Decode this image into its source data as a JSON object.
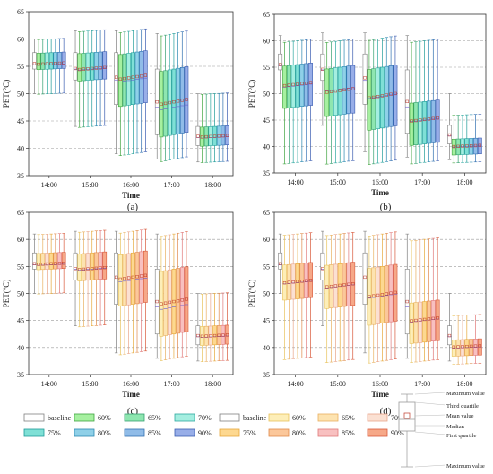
{
  "figure": {
    "legend_a": [
      {
        "label": "baseline",
        "color": "#ffffff",
        "edge": "#7f7f7f"
      },
      {
        "label": "60%",
        "color": "#a6f0a0",
        "edge": "#3fa43f"
      },
      {
        "label": "65%",
        "color": "#8ee6b0",
        "edge": "#34a070"
      },
      {
        "label": "70%",
        "color": "#a4eee0",
        "edge": "#2ea8a0"
      },
      {
        "label": "75%",
        "color": "#7fe0d6",
        "edge": "#1f9c98"
      },
      {
        "label": "80%",
        "color": "#8fd0e8",
        "edge": "#2a88b0"
      },
      {
        "label": "85%",
        "color": "#90bce8",
        "edge": "#2f6fb0"
      },
      {
        "label": "90%",
        "color": "#98aee8",
        "edge": "#3a5cb0"
      }
    ],
    "legend_b": [
      {
        "label": "baseline",
        "color": "#ffffff",
        "edge": "#7f7f7f"
      },
      {
        "label": "60%",
        "color": "#fdeeb8",
        "edge": "#e8c25a"
      },
      {
        "label": "65%",
        "color": "#fde3b0",
        "edge": "#e9b060"
      },
      {
        "label": "70%",
        "color": "#fbe0d2",
        "edge": "#e8a58a"
      },
      {
        "label": "75%",
        "color": "#fdd890",
        "edge": "#e6a83a"
      },
      {
        "label": "80%",
        "color": "#fbc79a",
        "edge": "#e08a4a"
      },
      {
        "label": "85%",
        "color": "#f8c0c0",
        "edge": "#e07878"
      },
      {
        "label": "90%",
        "color": "#f6a888",
        "edge": "#d8583a"
      }
    ],
    "box_legend": {
      "max_top": "Maximum value",
      "q3": "Third quartile",
      "mean": "Mean value",
      "median": "Median",
      "q1": "First quartile",
      "max_bottom": "Maximum value"
    }
  },
  "chart_data": [
    {
      "panel": "(a)",
      "type": "box",
      "palette": "a",
      "ylabel": "PET(°C)",
      "xlabel": "Time",
      "ylim": [
        35,
        65
      ],
      "yticks": [
        35,
        40,
        45,
        50,
        55,
        60,
        65
      ],
      "categories": [
        "14:00",
        "15:00",
        "16:00",
        "17:00",
        "18:00"
      ],
      "series_labels": [
        "baseline",
        "60%",
        "65%",
        "70%",
        "75%",
        "80%",
        "85%",
        "90%"
      ],
      "groups": [
        {
          "baseline": {
            "min": 50,
            "q1": 54.5,
            "median": 55.3,
            "mean": 55.5,
            "q3": 57.5,
            "max": 60
          },
          "scenario": {
            "min": 50,
            "q1": 54.5,
            "median": 55.3,
            "mean": 55.5,
            "q3": 57.5,
            "max": 60
          }
        },
        {
          "baseline": {
            "min": 44,
            "q1": 52.5,
            "median": 54.5,
            "mean": 54.6,
            "q3": 57.5,
            "max": 61.5
          },
          "scenario": {
            "min": 44,
            "q1": 52.5,
            "median": 54.5,
            "mean": 54.6,
            "q3": 57.5,
            "max": 61.5
          }
        },
        {
          "baseline": {
            "min": 39,
            "q1": 48,
            "median": 52.5,
            "mean": 53,
            "q3": 57.5,
            "max": 61.5
          },
          "scenario": {
            "min": 39,
            "q1": 48,
            "median": 52.5,
            "mean": 53,
            "q3": 57.5,
            "max": 61.5
          }
        },
        {
          "baseline": {
            "min": 38,
            "q1": 42.5,
            "median": 47.5,
            "mean": 48.5,
            "q3": 54.5,
            "max": 61
          },
          "scenario": {
            "min": 38,
            "q1": 42.5,
            "median": 47.5,
            "mean": 48.5,
            "q3": 54.5,
            "max": 61
          }
        },
        {
          "baseline": {
            "min": 37.5,
            "q1": 40.5,
            "median": 42,
            "mean": 42.2,
            "q3": 44,
            "max": 50
          },
          "scenario": {
            "min": 37.5,
            "q1": 40.5,
            "median": 42,
            "mean": 42.2,
            "q3": 44,
            "max": 50
          }
        }
      ]
    },
    {
      "panel": "(b)",
      "type": "box",
      "palette": "a",
      "ylabel": "PET(°C)",
      "xlabel": "Time",
      "ylim": [
        35,
        65
      ],
      "yticks": [
        35,
        40,
        45,
        50,
        55,
        60,
        65
      ],
      "categories": [
        "14:00",
        "15:00",
        "16:00",
        "17:00",
        "18:00"
      ],
      "series_labels": [
        "baseline",
        "60%",
        "65%",
        "70%",
        "75%",
        "80%",
        "85%",
        "90%"
      ],
      "groups": [
        {
          "baseline": {
            "min": 50,
            "q1": 54.5,
            "median": 55.3,
            "mean": 55.5,
            "q3": 57.5,
            "max": 61
          },
          "scenario": {
            "min": 37,
            "q1": 47.5,
            "median": 51.5,
            "mean": 51.8,
            "q3": 55.5,
            "max": 60
          }
        },
        {
          "baseline": {
            "min": 44,
            "q1": 52.5,
            "median": 54.5,
            "mean": 54.6,
            "q3": 57.5,
            "max": 61.5
          },
          "scenario": {
            "min": 37,
            "q1": 46,
            "median": 50.8,
            "mean": 50.6,
            "q3": 55,
            "max": 60
          }
        },
        {
          "baseline": {
            "min": 39,
            "q1": 48,
            "median": 52.5,
            "mean": 53,
            "q3": 57.5,
            "max": 61.5
          },
          "scenario": {
            "min": 37,
            "q1": 43.5,
            "median": 49.5,
            "mean": 49.6,
            "q3": 55,
            "max": 60.5
          }
        },
        {
          "baseline": {
            "min": 38,
            "q1": 42.5,
            "median": 47.5,
            "mean": 48.5,
            "q3": 54.5,
            "max": 61
          },
          "scenario": {
            "min": 37,
            "q1": 40.5,
            "median": 45,
            "mean": 45.1,
            "q3": 48.5,
            "max": 60
          }
        },
        {
          "baseline": {
            "min": 37.5,
            "q1": 40.5,
            "median": 42,
            "mean": 42.2,
            "q3": 44,
            "max": 50
          },
          "scenario": {
            "min": 37,
            "q1": 38.5,
            "median": 40,
            "mean": 40.1,
            "q3": 41.5,
            "max": 46
          }
        }
      ]
    },
    {
      "panel": "(c)",
      "type": "box",
      "palette": "b",
      "ylabel": "PET(°C)",
      "xlabel": "Time",
      "ylim": [
        35,
        65
      ],
      "yticks": [
        35,
        40,
        45,
        50,
        55,
        60,
        65
      ],
      "categories": [
        "14:00",
        "15:00",
        "16:00",
        "17:00",
        "18:00"
      ],
      "series_labels": [
        "baseline",
        "60%",
        "65%",
        "70%",
        "75%",
        "80%",
        "85%",
        "90%"
      ],
      "groups": [
        {
          "baseline": {
            "min": 50,
            "q1": 54.5,
            "median": 55.3,
            "mean": 55.5,
            "q3": 57.5,
            "max": 61
          },
          "scenario": {
            "min": 50,
            "q1": 54.5,
            "median": 55.3,
            "mean": 55.5,
            "q3": 57.5,
            "max": 61
          }
        },
        {
          "baseline": {
            "min": 44,
            "q1": 52.5,
            "median": 54.5,
            "mean": 54.6,
            "q3": 57.5,
            "max": 61.5
          },
          "scenario": {
            "min": 44,
            "q1": 52.5,
            "median": 54.5,
            "mean": 54.6,
            "q3": 57.5,
            "max": 61.5
          }
        },
        {
          "baseline": {
            "min": 39,
            "q1": 48,
            "median": 52.5,
            "mean": 53,
            "q3": 57.5,
            "max": 61.5
          },
          "scenario": {
            "min": 39,
            "q1": 48,
            "median": 52.5,
            "mean": 53,
            "q3": 57.5,
            "max": 61.5
          }
        },
        {
          "baseline": {
            "min": 38,
            "q1": 42.5,
            "median": 47.5,
            "mean": 48.5,
            "q3": 54.5,
            "max": 61
          },
          "scenario": {
            "min": 38,
            "q1": 42.5,
            "median": 47.5,
            "mean": 48.5,
            "q3": 54.5,
            "max": 61
          }
        },
        {
          "baseline": {
            "min": 37.5,
            "q1": 40.5,
            "median": 42,
            "mean": 42.2,
            "q3": 44,
            "max": 50
          },
          "scenario": {
            "min": 37.5,
            "q1": 40.5,
            "median": 42,
            "mean": 42.2,
            "q3": 44,
            "max": 50
          }
        }
      ]
    },
    {
      "panel": "(d)",
      "type": "box",
      "palette": "b",
      "ylabel": "PET(°C)",
      "xlabel": "Time",
      "ylim": [
        35,
        65
      ],
      "yticks": [
        35,
        40,
        45,
        50,
        55,
        60,
        65
      ],
      "categories": [
        "14:00",
        "15:00",
        "16:00",
        "17:00",
        "18:00"
      ],
      "series_labels": [
        "baseline",
        "60%",
        "65%",
        "70%",
        "75%",
        "80%",
        "85%",
        "90%"
      ],
      "groups": [
        {
          "baseline": {
            "min": 50,
            "q1": 54.5,
            "median": 55.3,
            "mean": 55.5,
            "q3": 57.5,
            "max": 61
          },
          "scenario": {
            "min": 38,
            "q1": 49,
            "median": 52,
            "mean": 52.2,
            "q3": 55.5,
            "max": 61
          }
        },
        {
          "baseline": {
            "min": 44,
            "q1": 52.5,
            "median": 54.5,
            "mean": 54.6,
            "q3": 57.5,
            "max": 61.5
          },
          "scenario": {
            "min": 37.5,
            "q1": 47.5,
            "median": 51.3,
            "mean": 51.5,
            "q3": 55.5,
            "max": 61
          }
        },
        {
          "baseline": {
            "min": 39,
            "q1": 48,
            "median": 52.5,
            "mean": 53,
            "q3": 57.5,
            "max": 61.5
          },
          "scenario": {
            "min": 37.5,
            "q1": 44.5,
            "median": 49.5,
            "mean": 49.8,
            "q3": 55,
            "max": 61
          }
        },
        {
          "baseline": {
            "min": 38,
            "q1": 42.5,
            "median": 47.5,
            "mean": 48.5,
            "q3": 54.5,
            "max": 61
          },
          "scenario": {
            "min": 37.5,
            "q1": 41,
            "median": 45,
            "mean": 45.2,
            "q3": 48.5,
            "max": 60
          }
        },
        {
          "baseline": {
            "min": 37.5,
            "q1": 40.5,
            "median": 42,
            "mean": 42.2,
            "q3": 44,
            "max": 50
          },
          "scenario": {
            "min": 37,
            "q1": 38.5,
            "median": 40,
            "mean": 40.2,
            "q3": 41.5,
            "max": 46
          }
        }
      ]
    }
  ]
}
